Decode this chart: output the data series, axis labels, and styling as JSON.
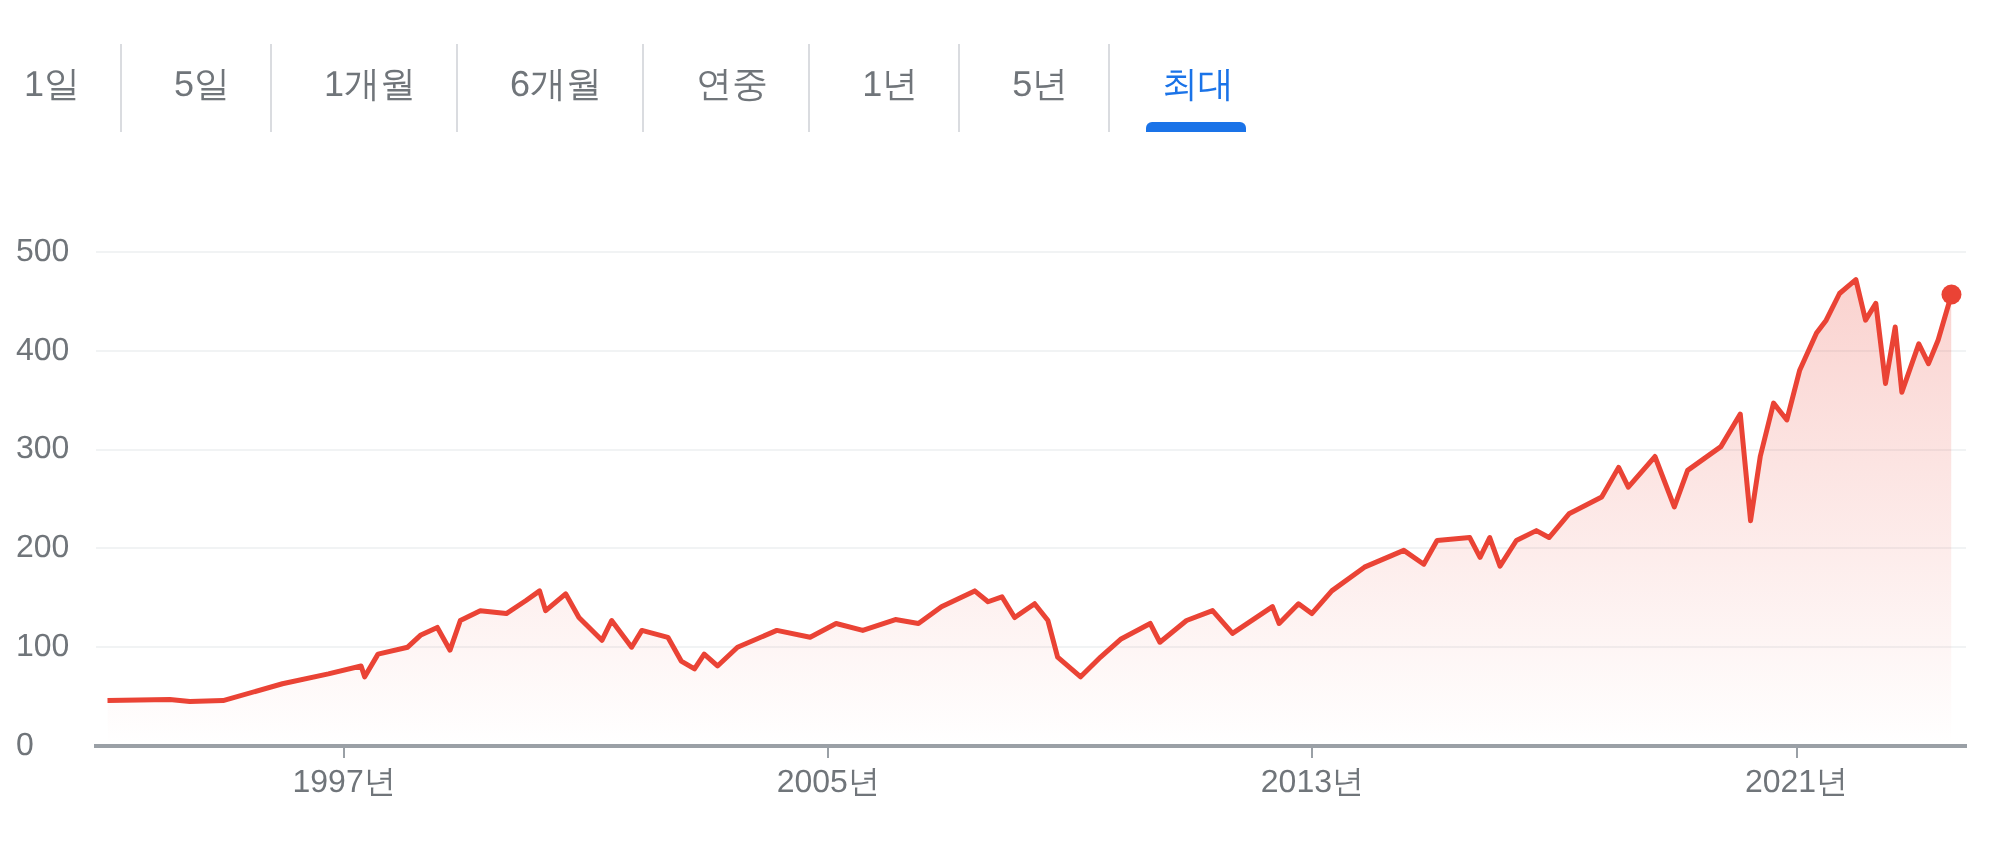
{
  "chart_data": {
    "type": "area",
    "annotations": [
      "1일",
      "5일",
      "1개월",
      "6개월",
      "연중",
      "1년",
      "5년",
      "최대"
    ],
    "x": [
      1993.09,
      1994.12,
      1994.45,
      1995.0,
      1995.98,
      1996.74,
      1997.28,
      1997.34,
      1997.56,
      1998.05,
      1998.26,
      1998.54,
      1998.75,
      1998.92,
      1999.25,
      1999.68,
      2000.0,
      2000.23,
      2000.33,
      2000.66,
      2000.88,
      2001.26,
      2001.42,
      2001.75,
      2001.92,
      2002.35,
      2002.57,
      2002.79,
      2002.95,
      2003.17,
      2003.5,
      2004.15,
      2004.7,
      2005.13,
      2005.57,
      2006.11,
      2006.49,
      2006.87,
      2007.42,
      2007.64,
      2007.87,
      2008.08,
      2008.41,
      2008.63,
      2008.79,
      2009.17,
      2009.5,
      2009.83,
      2010.32,
      2010.48,
      2010.92,
      2011.35,
      2011.68,
      2012.34,
      2012.45,
      2012.77,
      2012.99,
      2013.32,
      2013.86,
      2014.51,
      2014.84,
      2015.06,
      2015.6,
      2015.77,
      2015.93,
      2016.1,
      2016.37,
      2016.7,
      2016.91,
      2017.24,
      2017.78,
      2018.06,
      2018.22,
      2018.66,
      2018.98,
      2019.2,
      2019.75,
      2020.07,
      2020.24,
      2020.4,
      2020.62,
      2020.84,
      2021.05,
      2021.33,
      2021.49,
      2021.71,
      2021.98,
      2022.14,
      2022.31,
      2022.47,
      2022.63,
      2022.74,
      2023.02,
      2023.18,
      2023.34,
      2023.56
    ],
    "series": [
      {
        "color": "#ea4335",
        "values": [
          46,
          47,
          45,
          46,
          63,
          73,
          81,
          70,
          93,
          100,
          112,
          120,
          97,
          127,
          137,
          134,
          147,
          157,
          137,
          154,
          130,
          107,
          127,
          100,
          117,
          110,
          86,
          78,
          93,
          81,
          100,
          117,
          110,
          124,
          117,
          128,
          124,
          141,
          157,
          146,
          151,
          130,
          144,
          127,
          90,
          70,
          90,
          108,
          124,
          105,
          127,
          137,
          114,
          141,
          124,
          144,
          134,
          157,
          181,
          198,
          184,
          208,
          211,
          191,
          211,
          182,
          208,
          218,
          211,
          235,
          252,
          282,
          262,
          293,
          242,
          279,
          303,
          336,
          228,
          293,
          347,
          330,
          380,
          418,
          431,
          458,
          472,
          431,
          448,
          367,
          424,
          358,
          407,
          387,
          411,
          457
        ]
      }
    ],
    "xlim": [
      1992.9,
      2023.8
    ],
    "xticks": [
      {
        "value": 1997,
        "label": "1997년"
      },
      {
        "value": 2005,
        "label": "2005년"
      },
      {
        "value": 2013,
        "label": "2013년"
      },
      {
        "value": 2021,
        "label": "2021년"
      }
    ],
    "ylim": [
      0,
      500
    ],
    "yticks": [
      0,
      100,
      200,
      300,
      400,
      500
    ],
    "grid": "y",
    "legend": false
  }
}
